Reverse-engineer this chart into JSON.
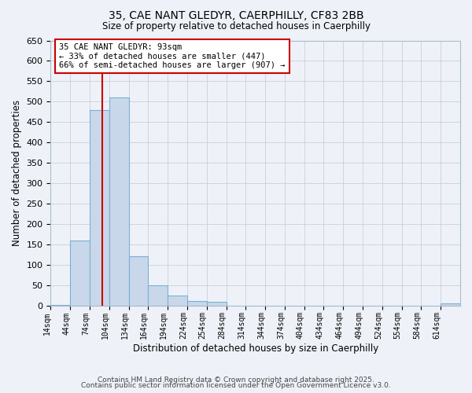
{
  "title1": "35, CAE NANT GLEDYR, CAERPHILLY, CF83 2BB",
  "title2": "Size of property relative to detached houses in Caerphilly",
  "xlabel": "Distribution of detached houses by size in Caerphilly",
  "ylabel": "Number of detached properties",
  "bin_labels": [
    "14sqm",
    "44sqm",
    "74sqm",
    "104sqm",
    "134sqm",
    "164sqm",
    "194sqm",
    "224sqm",
    "254sqm",
    "284sqm",
    "314sqm",
    "344sqm",
    "374sqm",
    "404sqm",
    "434sqm",
    "464sqm",
    "494sqm",
    "524sqm",
    "554sqm",
    "584sqm",
    "614sqm"
  ],
  "bin_edges": [
    14,
    44,
    74,
    104,
    134,
    164,
    194,
    224,
    254,
    284,
    314,
    344,
    374,
    404,
    434,
    464,
    494,
    524,
    554,
    584,
    614,
    644
  ],
  "bar_heights": [
    2,
    160,
    480,
    510,
    120,
    50,
    25,
    10,
    8,
    0,
    0,
    0,
    0,
    0,
    0,
    0,
    0,
    0,
    0,
    0,
    5
  ],
  "bar_color": "#c8d8ea",
  "bar_edge_color": "#7bafd4",
  "ylim": [
    0,
    650
  ],
  "yticks": [
    0,
    50,
    100,
    150,
    200,
    250,
    300,
    350,
    400,
    450,
    500,
    550,
    600,
    650
  ],
  "property_value": 93,
  "vline_color": "#cc0000",
  "annotation_title": "35 CAE NANT GLEDYR: 93sqm",
  "annotation_line2": "← 33% of detached houses are smaller (447)",
  "annotation_line3": "66% of semi-detached houses are larger (907) →",
  "annotation_box_color": "#cc0000",
  "grid_color": "#c8d0dc",
  "background_color": "#eef2f8",
  "footer1": "Contains HM Land Registry data © Crown copyright and database right 2025.",
  "footer2": "Contains public sector information licensed under the Open Government Licence v3.0."
}
